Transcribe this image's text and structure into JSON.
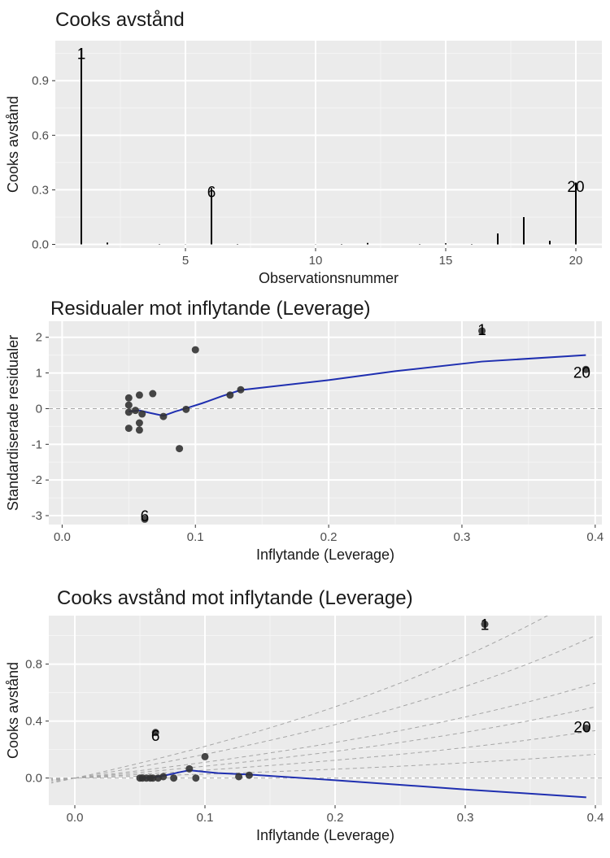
{
  "chart_data": [
    {
      "id": "p1",
      "type": "bar",
      "title": "Cooks avstånd",
      "xlabel": "Observationsnummer",
      "ylabel": "Cooks avstånd",
      "xlim": [
        0,
        21
      ],
      "ylim": [
        -0.02,
        1.12
      ],
      "xticks": [
        5,
        10,
        15,
        20
      ],
      "yticks": [
        0.0,
        0.3,
        0.6,
        0.9
      ],
      "ytick_labels": [
        "0.0",
        "0.3",
        "0.6",
        "0.9"
      ],
      "grid": true,
      "x": [
        1,
        2,
        3,
        4,
        5,
        6,
        7,
        8,
        9,
        10,
        11,
        12,
        13,
        14,
        15,
        16,
        17,
        18,
        19,
        20
      ],
      "values": [
        1.08,
        0.01,
        0.0,
        0.002,
        0.001,
        0.31,
        0.002,
        0.0,
        0.0,
        0.001,
        0.002,
        0.008,
        0.0,
        0.002,
        0.006,
        0.002,
        0.06,
        0.15,
        0.02,
        0.34
      ],
      "labels": [
        {
          "text": "1",
          "x": 1,
          "y": 1.05
        },
        {
          "text": "6",
          "x": 6,
          "y": 0.29
        },
        {
          "text": "20",
          "x": 20,
          "y": 0.32
        }
      ]
    },
    {
      "id": "p2",
      "type": "scatter",
      "title": "Residualer mot inflytande (Leverage)",
      "xlabel": "Inflytande (Leverage)",
      "ylabel": "Standardiserade residualer",
      "xlim": [
        -0.01,
        0.405
      ],
      "ylim": [
        -3.25,
        2.45
      ],
      "xticks": [
        0.0,
        0.1,
        0.2,
        0.3,
        0.4
      ],
      "xtick_labels": [
        "0.0",
        "0.1",
        "0.2",
        "0.3",
        "0.4"
      ],
      "yticks": [
        -3,
        -2,
        -1,
        0,
        1,
        2
      ],
      "ytick_labels": [
        "-3",
        "-2",
        "-1",
        "0",
        "1",
        "2"
      ],
      "grid": true,
      "hline": 0,
      "points": [
        {
          "x": 0.05,
          "y": 0.3
        },
        {
          "x": 0.05,
          "y": 0.1
        },
        {
          "x": 0.05,
          "y": -0.1
        },
        {
          "x": 0.05,
          "y": -0.55
        },
        {
          "x": 0.055,
          "y": -0.05
        },
        {
          "x": 0.058,
          "y": -0.4
        },
        {
          "x": 0.058,
          "y": -0.6
        },
        {
          "x": 0.058,
          "y": 0.38
        },
        {
          "x": 0.06,
          "y": -0.15
        },
        {
          "x": 0.062,
          "y": -3.1
        },
        {
          "x": 0.068,
          "y": 0.42
        },
        {
          "x": 0.076,
          "y": -0.22
        },
        {
          "x": 0.088,
          "y": -1.12
        },
        {
          "x": 0.093,
          "y": -0.02
        },
        {
          "x": 0.1,
          "y": 1.65
        },
        {
          "x": 0.126,
          "y": 0.38
        },
        {
          "x": 0.134,
          "y": 0.53
        },
        {
          "x": 0.315,
          "y": 2.18
        },
        {
          "x": 0.393,
          "y": 1.1
        }
      ],
      "trend": {
        "x": [
          0.05,
          0.058,
          0.066,
          0.076,
          0.085,
          0.094,
          0.105,
          0.12,
          0.134,
          0.2,
          0.25,
          0.315,
          0.393
        ],
        "y": [
          -0.08,
          -0.05,
          -0.12,
          -0.2,
          -0.08,
          0.02,
          0.15,
          0.35,
          0.52,
          0.8,
          1.05,
          1.32,
          1.5
        ]
      },
      "labels": [
        {
          "text": "1",
          "x": 0.315,
          "y": 2.22
        },
        {
          "text": "6",
          "x": 0.062,
          "y": -3.0
        },
        {
          "text": "20",
          "x": 0.39,
          "y": 1.02
        }
      ]
    },
    {
      "id": "p3",
      "type": "scatter",
      "title": "Cooks avstånd mot inflytande (Leverage)",
      "xlabel": "Inflytande (Leverage)",
      "ylabel": "Cooks avstånd",
      "xlim": [
        -0.02,
        0.405
      ],
      "ylim": [
        -0.19,
        1.14
      ],
      "xticks": [
        0.0,
        0.1,
        0.2,
        0.3,
        0.4
      ],
      "xtick_labels": [
        "0.0",
        "0.1",
        "0.2",
        "0.3",
        "0.4"
      ],
      "yticks": [
        0.0,
        0.4,
        0.8
      ],
      "ytick_labels": [
        "0.0",
        "0.4",
        "0.8"
      ],
      "grid": true,
      "hline": 0,
      "points": [
        {
          "x": 0.05,
          "y": 0.0
        },
        {
          "x": 0.052,
          "y": 0.0
        },
        {
          "x": 0.055,
          "y": 0.0
        },
        {
          "x": 0.058,
          "y": 0.0
        },
        {
          "x": 0.06,
          "y": 0.0
        },
        {
          "x": 0.062,
          "y": 0.32
        },
        {
          "x": 0.064,
          "y": 0.0
        },
        {
          "x": 0.068,
          "y": 0.01
        },
        {
          "x": 0.076,
          "y": 0.0
        },
        {
          "x": 0.088,
          "y": 0.065
        },
        {
          "x": 0.093,
          "y": 0.0
        },
        {
          "x": 0.1,
          "y": 0.15
        },
        {
          "x": 0.126,
          "y": 0.01
        },
        {
          "x": 0.134,
          "y": 0.02
        },
        {
          "x": 0.315,
          "y": 1.08
        },
        {
          "x": 0.393,
          "y": 0.35
        }
      ],
      "trend": {
        "x": [
          0.05,
          0.06,
          0.07,
          0.08,
          0.088,
          0.095,
          0.11,
          0.134,
          0.2,
          0.3,
          0.393
        ],
        "y": [
          0.0,
          0.005,
          0.02,
          0.04,
          0.055,
          0.048,
          0.035,
          0.025,
          -0.015,
          -0.08,
          -0.135
        ]
      },
      "contours": [
        0.5,
        1,
        1.5,
        2,
        3,
        4
      ],
      "labels": [
        {
          "text": "1",
          "x": 0.315,
          "y": 1.08
        },
        {
          "text": "6",
          "x": 0.062,
          "y": 0.3
        },
        {
          "text": "20",
          "x": 0.39,
          "y": 0.36
        }
      ]
    }
  ],
  "colors": {
    "panel_bg": "#ebebeb",
    "grid_major": "#ffffff",
    "grid_minor": "#f5f5f5",
    "point": "#333333",
    "trend": "#1f2fb0",
    "dashed": "#a6a6a6"
  }
}
